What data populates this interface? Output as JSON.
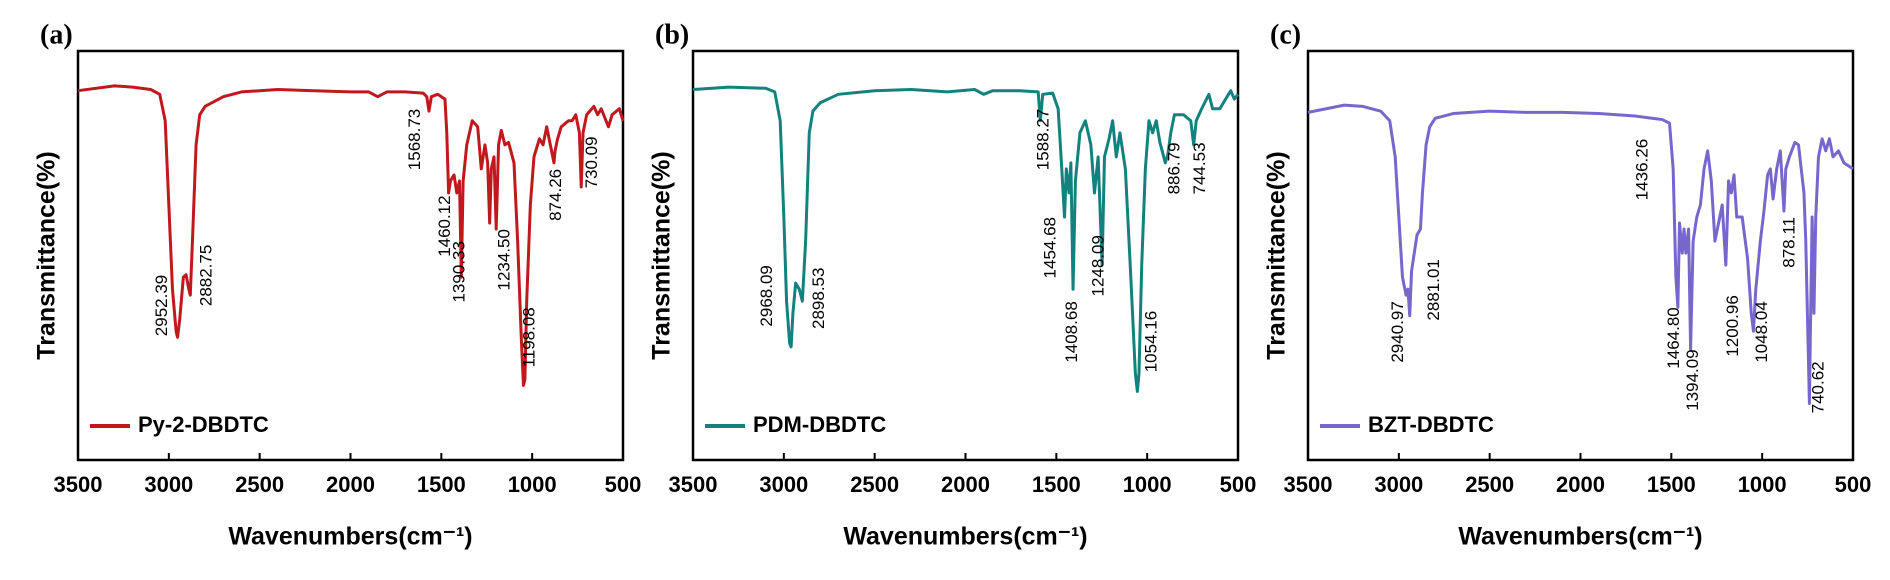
{
  "chart_data": [
    {
      "type": "line",
      "panel_label": "(a)",
      "xlabel": "Wavenumbers(cm⁻¹)",
      "ylabel": "Transmittance(%)",
      "xlim": [
        3500,
        500
      ],
      "xticks": [
        3500,
        3000,
        2500,
        2000,
        1500,
        1000,
        500
      ],
      "ylim": [
        0,
        34
      ],
      "legend": "lower left",
      "series": [
        {
          "name": "Py-2-DBDTC",
          "color": "#c0181d",
          "x": [
            3500,
            3300,
            3200,
            3100,
            3050,
            3020,
            3000,
            2980,
            2960,
            2952,
            2940,
            2920,
            2905,
            2890,
            2882,
            2870,
            2850,
            2830,
            2800,
            2700,
            2600,
            2400,
            2200,
            2000,
            1900,
            1850,
            1800,
            1700,
            1600,
            1580,
            1568,
            1555,
            1520,
            1480,
            1470,
            1460,
            1450,
            1430,
            1415,
            1400,
            1390,
            1380,
            1360,
            1330,
            1300,
            1280,
            1260,
            1245,
            1234,
            1225,
            1210,
            1198,
            1185,
            1170,
            1150,
            1130,
            1100,
            1080,
            1060,
            1048,
            1040,
            1030,
            1010,
            990,
            960,
            940,
            920,
            900,
            880,
            874,
            860,
            840,
            800,
            780,
            760,
            740,
            730,
            720,
            700,
            660,
            640,
            620,
            580,
            560,
            520,
            500
          ],
          "values": [
            30.7,
            31.1,
            31.0,
            30.8,
            30.4,
            28.2,
            21.2,
            14.2,
            10.7,
            10.2,
            11.7,
            15.2,
            15.4,
            14.2,
            13.7,
            18.2,
            26.2,
            28.7,
            29.4,
            30.2,
            30.6,
            30.8,
            30.7,
            30.6,
            30.6,
            30.2,
            30.6,
            30.6,
            30.5,
            30.2,
            29.0,
            30.2,
            30.4,
            30.0,
            27.2,
            22.2,
            23.2,
            23.7,
            22.2,
            23.2,
            15.2,
            23.2,
            26.2,
            28.2,
            27.7,
            24.2,
            26.2,
            24.7,
            19.7,
            24.2,
            25.2,
            19.2,
            26.2,
            27.4,
            26.2,
            26.4,
            24.7,
            18.2,
            10.2,
            6.2,
            6.7,
            13.2,
            21.2,
            25.2,
            26.7,
            26.2,
            27.7,
            26.2,
            24.7,
            25.7,
            26.7,
            27.7,
            28.2,
            28.2,
            28.7,
            27.2,
            22.7,
            27.2,
            28.7,
            29.4,
            28.7,
            29.2,
            27.7,
            28.7,
            29.2,
            28.2
          ]
        }
      ],
      "annotations": [
        {
          "label": "2952.39",
          "x": 3035,
          "y": 15.4
        },
        {
          "label": "2882.75",
          "x": 2790,
          "y": 17.9
        },
        {
          "label": "1568.73",
          "x": 1642,
          "y": 29.2
        },
        {
          "label": "1460.12",
          "x": 1476,
          "y": 22.0
        },
        {
          "label": "1390.33",
          "x": 1396,
          "y": 18.2
        },
        {
          "label": "1234.50",
          "x": 1150,
          "y": 19.2
        },
        {
          "label": "1198.08",
          "x": 1012,
          "y": 12.7
        },
        {
          "label": "874.26",
          "x": 866,
          "y": 24.2
        },
        {
          "label": "730.09",
          "x": 667,
          "y": 26.9
        }
      ]
    },
    {
      "type": "line",
      "panel_label": "(b)",
      "xlabel": "Wavenumbers(cm⁻¹)",
      "ylabel": "Transmittance(%)",
      "xlim": [
        3500,
        500
      ],
      "xticks": [
        3500,
        3000,
        2500,
        2000,
        1500,
        1000,
        500
      ],
      "ylim": [
        0,
        34
      ],
      "legend": "lower left",
      "series": [
        {
          "name": "PDM-DBDTC",
          "color": "#13827e",
          "x": [
            3500,
            3300,
            3100,
            3050,
            3020,
            3000,
            2985,
            2968,
            2960,
            2950,
            2935,
            2915,
            2898,
            2880,
            2860,
            2840,
            2800,
            2700,
            2500,
            2300,
            2100,
            1950,
            1900,
            1850,
            1700,
            1600,
            1588,
            1575,
            1520,
            1490,
            1470,
            1455,
            1445,
            1430,
            1420,
            1408,
            1395,
            1370,
            1340,
            1310,
            1290,
            1270,
            1248,
            1235,
            1210,
            1190,
            1170,
            1150,
            1120,
            1090,
            1065,
            1054,
            1045,
            1030,
            1010,
            990,
            970,
            950,
            930,
            900,
            886,
            870,
            850,
            800,
            760,
            744,
            730,
            700,
            660,
            640,
            600,
            560,
            540,
            520,
            500
          ],
          "values": [
            30.8,
            31.0,
            30.9,
            30.6,
            28.2,
            20.2,
            13.2,
            9.7,
            9.4,
            12.2,
            14.7,
            14.2,
            13.2,
            18.2,
            27.2,
            29.0,
            29.7,
            30.4,
            30.7,
            30.8,
            30.6,
            30.8,
            30.4,
            30.7,
            30.7,
            30.6,
            28.2,
            30.4,
            30.5,
            29.2,
            24.2,
            20.2,
            24.2,
            22.2,
            24.7,
            14.2,
            23.2,
            27.2,
            28.2,
            26.2,
            22.2,
            25.2,
            16.2,
            25.2,
            26.7,
            28.2,
            25.2,
            27.2,
            24.2,
            15.2,
            7.2,
            5.7,
            7.2,
            16.2,
            24.2,
            28.2,
            27.2,
            28.2,
            26.4,
            24.7,
            25.4,
            27.2,
            28.7,
            28.7,
            28.2,
            26.2,
            28.2,
            29.2,
            30.4,
            29.2,
            29.2,
            30.2,
            30.7,
            30.0,
            30.4
          ]
        }
      ],
      "annotations": [
        {
          "label": "2968.09",
          "x": 3089,
          "y": 16.2
        },
        {
          "label": "2898.53",
          "x": 2803,
          "y": 16.0
        },
        {
          "label": "1588.27",
          "x": 1569,
          "y": 29.2
        },
        {
          "label": "1454.68",
          "x": 1529,
          "y": 20.2
        },
        {
          "label": "1408.68",
          "x": 1410,
          "y": 13.2
        },
        {
          "label": "1248.09",
          "x": 1264,
          "y": 18.7
        },
        {
          "label": "1054.16",
          "x": 972,
          "y": 12.4
        },
        {
          "label": "886.79",
          "x": 846,
          "y": 26.4
        },
        {
          "label": "744.53",
          "x": 706,
          "y": 26.4
        }
      ]
    },
    {
      "type": "line",
      "panel_label": "(c)",
      "xlabel": "Wavenumbers(cm⁻¹)",
      "ylabel": "Transmittance(%)",
      "xlim": [
        3500,
        500
      ],
      "xticks": [
        3500,
        3000,
        2500,
        2000,
        1500,
        1000,
        500
      ],
      "ylim": [
        0,
        34
      ],
      "legend": "lower left",
      "series": [
        {
          "name": "BZT-DBDTC",
          "color": "#7766cc",
          "x": [
            3500,
            3400,
            3300,
            3200,
            3100,
            3050,
            3020,
            3000,
            2980,
            2960,
            2950,
            2940,
            2930,
            2900,
            2881,
            2870,
            2850,
            2830,
            2800,
            2700,
            2500,
            2300,
            2100,
            1900,
            1700,
            1550,
            1510,
            1490,
            1475,
            1464,
            1455,
            1440,
            1430,
            1420,
            1405,
            1394,
            1380,
            1360,
            1340,
            1320,
            1300,
            1280,
            1260,
            1240,
            1220,
            1200,
            1185,
            1170,
            1155,
            1140,
            1110,
            1080,
            1060,
            1048,
            1035,
            1010,
            990,
            970,
            955,
            940,
            920,
            900,
            880,
            870,
            850,
            820,
            800,
            770,
            760,
            745,
            740,
            735,
            725,
            715,
            705,
            690,
            670,
            650,
            630,
            610,
            580,
            550,
            500
          ],
          "values": [
            28.9,
            29.2,
            29.5,
            29.4,
            29.0,
            28.2,
            25.2,
            20.2,
            15.2,
            13.7,
            14.2,
            12.0,
            15.7,
            18.7,
            19.2,
            22.2,
            26.2,
            27.7,
            28.4,
            28.8,
            29.0,
            28.9,
            28.9,
            28.8,
            28.6,
            28.3,
            28.0,
            24.2,
            15.2,
            12.7,
            19.7,
            17.2,
            19.2,
            17.2,
            19.2,
            9.2,
            18.2,
            20.2,
            21.2,
            24.2,
            25.7,
            23.2,
            18.2,
            19.7,
            21.2,
            16.2,
            23.2,
            22.2,
            23.7,
            20.2,
            20.2,
            16.7,
            12.2,
            10.7,
            14.2,
            18.2,
            20.7,
            23.7,
            24.2,
            21.7,
            24.2,
            25.7,
            20.7,
            24.2,
            25.2,
            26.4,
            26.2,
            22.2,
            18.2,
            8.2,
            4.7,
            10.2,
            20.2,
            12.2,
            20.2,
            25.2,
            26.7,
            25.7,
            26.7,
            25.2,
            25.7,
            24.7,
            24.2
          ]
        }
      ],
      "annotations": [
        {
          "label": "2940.97",
          "x": 3002,
          "y": 13.2
        },
        {
          "label": "2881.01",
          "x": 2803,
          "y": 16.7
        },
        {
          "label": "1436.26",
          "x": 1655,
          "y": 26.7
        },
        {
          "label": "1464.80",
          "x": 1483,
          "y": 12.7
        },
        {
          "label": "1394.09",
          "x": 1377,
          "y": 9.2
        },
        {
          "label": "1200.96",
          "x": 1158,
          "y": 13.7
        },
        {
          "label": "1048.04",
          "x": 998,
          "y": 13.2
        },
        {
          "label": "878.11",
          "x": 846,
          "y": 20.2
        },
        {
          "label": "740.62",
          "x": 687,
          "y": 8.2
        }
      ]
    }
  ]
}
